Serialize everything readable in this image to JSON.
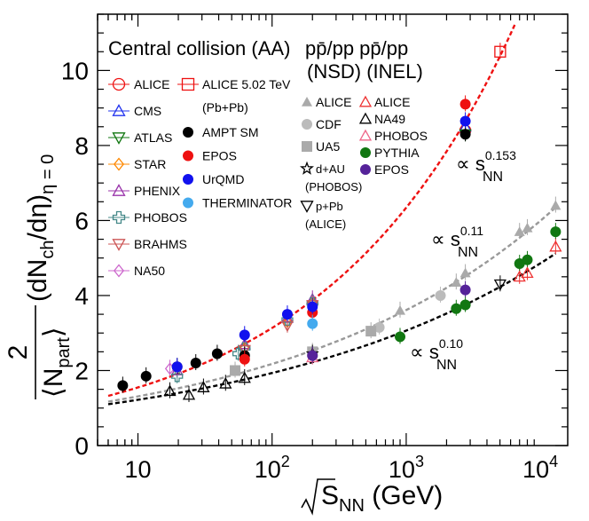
{
  "chart_data": {
    "type": "scatter",
    "xscale": "log",
    "xlim": [
      5,
      16000
    ],
    "ylim": [
      0,
      11.5
    ],
    "xlabel": "√S_NN (GeV)",
    "ylabel": "2/⟨N_part⟩ (dN_ch/dη)_η=0",
    "xticks": [
      {
        "v": 10,
        "label": "10",
        "exp": ""
      },
      {
        "v": 100,
        "label": "10",
        "exp": "2"
      },
      {
        "v": 1000,
        "label": "10",
        "exp": "3"
      },
      {
        "v": 10000,
        "label": "10",
        "exp": "4"
      }
    ],
    "yticks": [
      0,
      2,
      4,
      6,
      8,
      10
    ],
    "title_left": "Central collision (AA)",
    "title_right1": "pp̄/pp pp̄/pp",
    "title_right2": "(NSD) (INEL)",
    "fits": [
      {
        "name": "∝ s_NN^0.153",
        "base": "∝ s",
        "sub": "NN",
        "exp": "0.153",
        "color": "#ee1111",
        "a": 0.766,
        "b": 0.153,
        "x0": 6,
        "x1": 6500
      },
      {
        "name": "∝ s_NN^0.11",
        "base": "∝ s",
        "sub": "NN",
        "exp": "0.11",
        "color": "#999999",
        "a": 0.79,
        "b": 0.11,
        "x0": 6,
        "x1": 13000
      },
      {
        "name": "∝ s_NN^0.10",
        "base": "∝ s",
        "sub": "NN",
        "exp": "0.10",
        "color": "#000000",
        "a": 0.77,
        "b": 0.1,
        "x0": 6,
        "x1": 13000
      }
    ],
    "series": [
      {
        "name": "ALICE",
        "group": "AA",
        "marker": "circle-open",
        "color": "#ee1111",
        "points": [
          [
            2760,
            8.4
          ]
        ]
      },
      {
        "name": "ALICE 5.02 TeV",
        "name2": "(Pb+Pb)",
        "group": "AA",
        "marker": "square-open",
        "color": "#ee1111",
        "points": [
          [
            5020,
            10.5
          ]
        ]
      },
      {
        "name": "CMS",
        "group": "AA",
        "marker": "triangle-open",
        "color": "#2233ee",
        "points": [
          [
            2760,
            8.5
          ]
        ]
      },
      {
        "name": "ATLAS",
        "group": "AA",
        "marker": "invtriangle-open",
        "color": "#117711",
        "points": [
          [
            2760,
            8.3
          ]
        ]
      },
      {
        "name": "STAR",
        "group": "AA",
        "marker": "diamond-open",
        "color": "#ff8800",
        "points": [
          [
            62.4,
            2.6
          ],
          [
            130,
            3.3
          ],
          [
            200,
            3.8
          ]
        ]
      },
      {
        "name": "PHENIX",
        "group": "AA",
        "marker": "triangle-open",
        "color": "#9933aa",
        "points": [
          [
            19.6,
            2.0
          ],
          [
            62.4,
            2.7
          ],
          [
            130,
            3.4
          ],
          [
            200,
            3.9
          ]
        ]
      },
      {
        "name": "PHOBOS",
        "group": "AA",
        "marker": "cross-open",
        "color": "#448888",
        "points": [
          [
            19.6,
            1.85
          ],
          [
            56,
            2.45
          ],
          [
            62.4,
            2.6
          ],
          [
            130,
            3.35
          ],
          [
            200,
            3.8
          ]
        ]
      },
      {
        "name": "BRAHMS",
        "group": "AA",
        "marker": "invtriangle-open",
        "color": "#cc5555",
        "points": [
          [
            62.4,
            2.55
          ],
          [
            130,
            3.2
          ],
          [
            200,
            3.75
          ]
        ]
      },
      {
        "name": "NA50",
        "group": "AA",
        "marker": "diamond-open",
        "color": "#cc66cc",
        "points": [
          [
            17.3,
            2.05
          ]
        ]
      },
      {
        "name": "AMPT SM",
        "group": "MC",
        "marker": "circle-filled",
        "color": "#000000",
        "points": [
          [
            7.7,
            1.6
          ],
          [
            11.5,
            1.85
          ],
          [
            19.6,
            2.1
          ],
          [
            27,
            2.2
          ],
          [
            39,
            2.45
          ],
          [
            62.4,
            2.4
          ],
          [
            2760,
            8.3
          ]
        ]
      },
      {
        "name": "EPOS",
        "group": "MC",
        "marker": "circle-filled",
        "color": "#ee1111",
        "points": [
          [
            62.4,
            2.3
          ],
          [
            200,
            3.55
          ],
          [
            2760,
            9.1
          ]
        ]
      },
      {
        "name": "UrQMD",
        "group": "MC",
        "marker": "circle-filled",
        "color": "#1111ee",
        "points": [
          [
            19.6,
            2.1
          ],
          [
            62.4,
            2.95
          ],
          [
            130,
            3.5
          ],
          [
            200,
            3.7
          ],
          [
            2760,
            8.65
          ]
        ]
      },
      {
        "name": "THERMINATOR",
        "group": "MC",
        "marker": "circle-filled",
        "color": "#44aaee",
        "points": [
          [
            200,
            3.25
          ]
        ]
      },
      {
        "name": "ALICE",
        "group": "pp NSD",
        "marker": "triangle-filled",
        "color": "#aaaaaa",
        "points": [
          [
            900,
            3.6
          ],
          [
            2360,
            4.35
          ],
          [
            2760,
            4.6
          ],
          [
            7000,
            5.7
          ],
          [
            8000,
            5.8
          ],
          [
            13000,
            6.4
          ]
        ]
      },
      {
        "name": "CDF",
        "group": "pp NSD",
        "marker": "circle-filled",
        "color": "#bbbbbb",
        "points": [
          [
            630,
            3.15
          ],
          [
            1800,
            4.0
          ]
        ]
      },
      {
        "name": "UA5",
        "group": "pp NSD",
        "marker": "square-filled",
        "color": "#aaaaaa",
        "points": [
          [
            53,
            2.0
          ],
          [
            200,
            2.5
          ],
          [
            546,
            3.05
          ]
        ]
      },
      {
        "name": "d+AU",
        "name2": "(PHOBOS)",
        "group": "pA",
        "marker": "star-open",
        "color": "#000000",
        "points": [
          [
            200,
            2.45
          ]
        ]
      },
      {
        "name": "p+Pb",
        "name2": "(ALICE)",
        "group": "pA",
        "marker": "invtriangle-open",
        "color": "#000000",
        "points": [
          [
            5020,
            4.3
          ]
        ]
      },
      {
        "name": "ALICE",
        "group": "pp INEL",
        "marker": "triangle-open",
        "color": "#ee3333",
        "points": [
          [
            7000,
            4.5
          ],
          [
            8000,
            4.6
          ],
          [
            13000,
            5.3
          ]
        ]
      },
      {
        "name": "NA49",
        "group": "pp INEL",
        "marker": "triangle-open",
        "color": "#000000",
        "points": [
          [
            17.3,
            1.45
          ],
          [
            24,
            1.35
          ],
          [
            30.8,
            1.55
          ],
          [
            45,
            1.65
          ],
          [
            62.4,
            1.8
          ]
        ]
      },
      {
        "name": "PHOBOS",
        "group": "pp INEL",
        "marker": "triangle-open",
        "color": "#ee6688",
        "points": [
          [
            200,
            2.35
          ]
        ]
      },
      {
        "name": "PYTHIA",
        "group": "pp INEL",
        "marker": "circle-filled",
        "color": "#117711",
        "points": [
          [
            900,
            2.9
          ],
          [
            2360,
            3.65
          ],
          [
            2760,
            3.75
          ],
          [
            7000,
            4.85
          ],
          [
            8000,
            4.95
          ],
          [
            13000,
            5.7
          ]
        ]
      },
      {
        "name": "EPOS",
        "group": "pp INEL",
        "marker": "circle-filled",
        "color": "#552299",
        "points": [
          [
            200,
            2.4
          ],
          [
            2760,
            4.15
          ]
        ]
      }
    ]
  }
}
